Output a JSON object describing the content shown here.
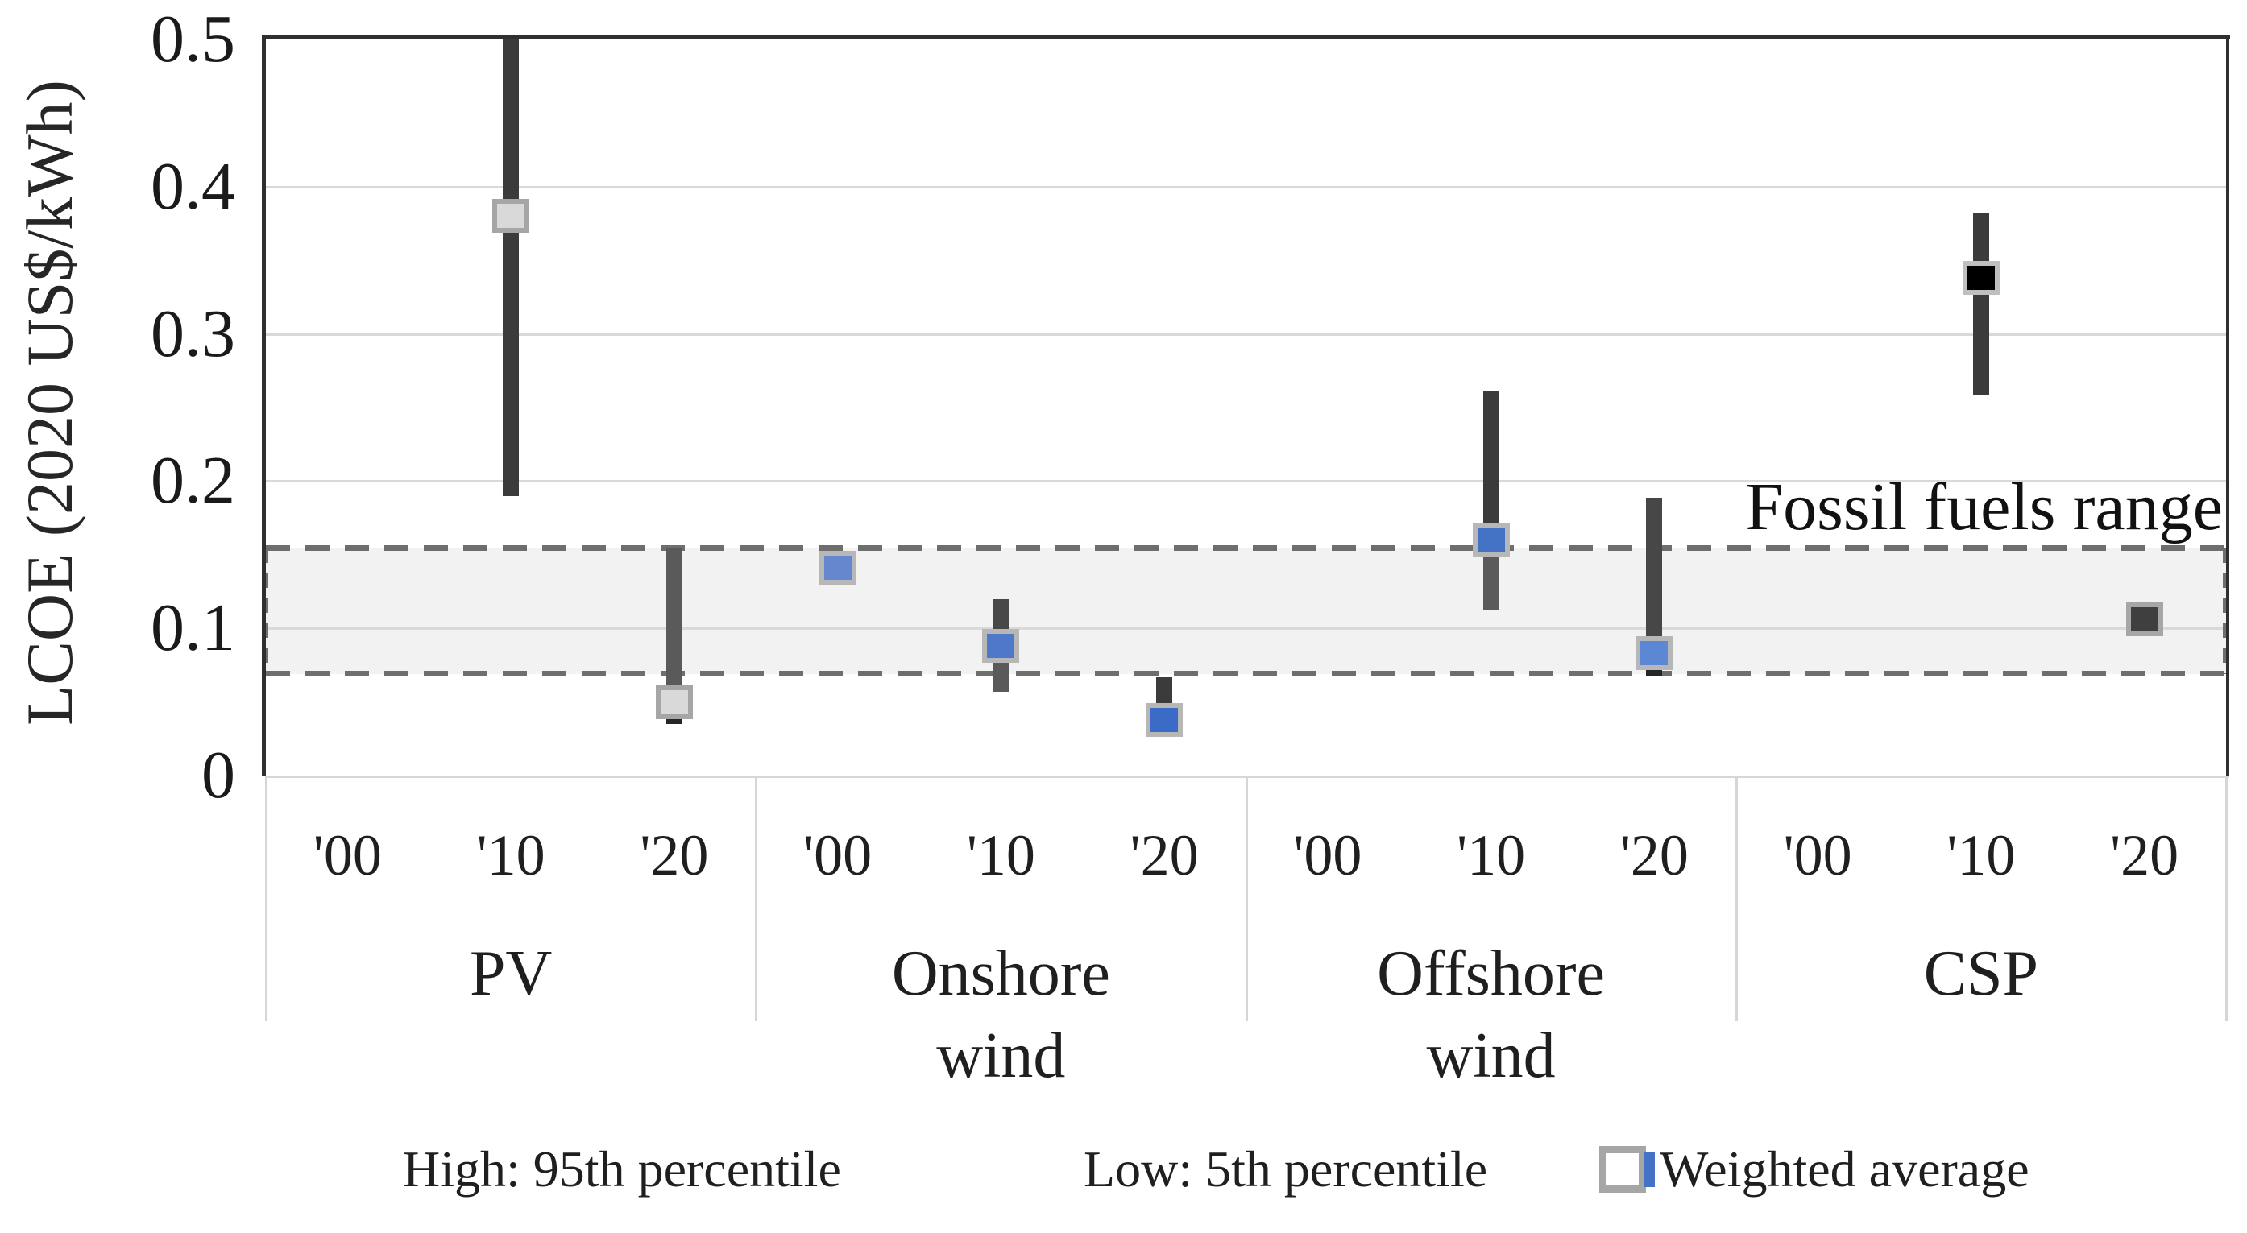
{
  "chart_data": {
    "type": "range-bar",
    "ylabel": "LCOE (2020 US$/kWh)",
    "ylim": [
      0,
      0.5
    ],
    "ytick_labels": [
      "0.5",
      "0.4",
      "0.3",
      "0.2",
      "0.1",
      "0"
    ],
    "ytick_values": [
      0.5,
      0.4,
      0.3,
      0.2,
      0.1,
      0
    ],
    "grid": "horizontal",
    "fossil_band": {
      "label": "Fossil fuels range",
      "high": 0.154,
      "low": 0.069,
      "fill_color": "#f2f2f2",
      "dash_color": "#6e6e6e"
    },
    "groups": [
      {
        "label_lines": [
          "PV"
        ],
        "years": [
          "'00",
          "'10",
          "'20"
        ]
      },
      {
        "label_lines": [
          "Onshore",
          "wind"
        ],
        "years": [
          "'00",
          "'10",
          "'20"
        ]
      },
      {
        "label_lines": [
          "Offshore",
          "wind"
        ],
        "years": [
          "'00",
          "'10",
          "'20"
        ]
      },
      {
        "label_lines": [
          "CSP"
        ],
        "years": [
          "'00",
          "'10",
          "'20"
        ]
      }
    ],
    "points": [
      {
        "group": "PV",
        "year": "'00",
        "high": null,
        "avg": null,
        "low": null
      },
      {
        "group": "PV",
        "year": "'10",
        "high": 0.51,
        "high_clipped": true,
        "avg": 0.38,
        "low": 0.19,
        "bar_above_color": "#3b3b3b",
        "bar_below_color": "#3b3b3b",
        "marker_fill": "#d9d9d9",
        "marker_border": "#a6a6a6"
      },
      {
        "group": "PV",
        "year": "'20",
        "high": 0.155,
        "avg": 0.05,
        "low": 0.035,
        "bar_above_color": "#5a5a5a",
        "bar_below_color": "#262626",
        "marker_fill": "#d9d9d9",
        "marker_border": "#a6a6a6"
      },
      {
        "group": "Onshore wind",
        "year": "'00",
        "high": null,
        "avg": 0.141,
        "low": null,
        "marker_fill": "#6487ce",
        "marker_border": "#b7b7b7"
      },
      {
        "group": "Onshore wind",
        "year": "'10",
        "high": 0.12,
        "avg": 0.088,
        "low": 0.057,
        "bar_above_color": "#484848",
        "bar_below_color": "#5a5a5a",
        "marker_fill": "#4e79c9",
        "marker_border": "#b7b7b7"
      },
      {
        "group": "Onshore wind",
        "year": "'20",
        "high": 0.067,
        "avg": 0.038,
        "low": 0.029,
        "bar_above_color": "#3b3b3b",
        "bar_below_color": "#262626",
        "marker_fill": "#3a6bc6",
        "marker_border": "#b7b7b7"
      },
      {
        "group": "Offshore wind",
        "year": "'00",
        "high": null,
        "avg": null,
        "low": null
      },
      {
        "group": "Offshore wind",
        "year": "'10",
        "high": 0.261,
        "avg": 0.16,
        "low": 0.112,
        "bar_above_color": "#3b3b3b",
        "bar_below_color": "#5a5a5a",
        "marker_fill": "#4472c4",
        "marker_border": "#b7b7b7"
      },
      {
        "group": "Offshore wind",
        "year": "'20",
        "high": 0.189,
        "avg": 0.083,
        "low": 0.068,
        "bar_above_color": "#474747",
        "bar_below_color": "#262626",
        "marker_fill": "#5b87d5",
        "marker_border": "#b7b7b7"
      },
      {
        "group": "CSP",
        "year": "'00",
        "high": null,
        "avg": null,
        "low": null
      },
      {
        "group": "CSP",
        "year": "'10",
        "high": 0.382,
        "avg": 0.338,
        "low": 0.259,
        "bar_above_color": "#3b3b3b",
        "bar_below_color": "#3b3b3b",
        "marker_fill": "#000000",
        "marker_border": "#bfbfbf"
      },
      {
        "group": "CSP",
        "year": "'20",
        "high": null,
        "avg": 0.106,
        "low": null,
        "marker_fill": "#3f3f3f",
        "marker_border": "#a6a6a6"
      }
    ],
    "legend": [
      {
        "label": "High: 95th percentile"
      },
      {
        "label": "Low: 5th percentile"
      },
      {
        "label": "Weighted average",
        "icon": "weighted-average-marker",
        "icon_square_border": "#a6a6a6",
        "icon_bar_color": "#4472c4"
      }
    ],
    "colors": {
      "whisker_dark": "#3b3b3b",
      "gridline": "#d9d9d9",
      "plot_border": "#2f2f2f",
      "axis_light": "#d6d6d6",
      "accent_blue": "#4472c4"
    }
  }
}
